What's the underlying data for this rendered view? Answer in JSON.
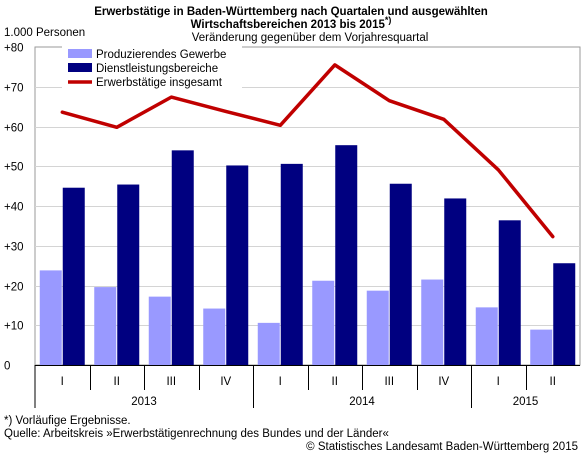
{
  "chart_data": {
    "type": "bar",
    "title": "Erwerbstätige in Baden-Württemberg nach Quartalen und ausgewählten Wirtschaftsbereichen 2013 bis 2015*)",
    "title_lines": [
      "Erwerbstätige in Baden-Württemberg nach Quartalen und ausgewählten",
      "Wirtschaftsbereichen 2013 bis 2015"
    ],
    "title_mark": "*)",
    "subtitle": "Veränderung gegenüber dem Vorjahresquartal",
    "ylabel": "1.000 Personen",
    "ylim": [
      0,
      80
    ],
    "yticks": [
      "0",
      "+10",
      "+20",
      "+30",
      "+40",
      "+50",
      "+60",
      "+70",
      "+80"
    ],
    "grid": true,
    "legend_position": "top-left",
    "categories": [
      "I",
      "II",
      "III",
      "IV",
      "I",
      "II",
      "III",
      "IV",
      "I",
      "II"
    ],
    "years": [
      {
        "label": "2013",
        "quarters": 4
      },
      {
        "label": "2014",
        "quarters": 4
      },
      {
        "label": "2015",
        "quarters": 2
      }
    ],
    "series": [
      {
        "name": "Produzierendes Gewerbe",
        "kind": "bar",
        "color": "#9999ff",
        "values": [
          23.8,
          19.6,
          17.2,
          14.2,
          10.6,
          21.2,
          18.7,
          21.5,
          14.5,
          8.9
        ]
      },
      {
        "name": "Dienstleistungsbereiche",
        "kind": "bar",
        "color": "#000080",
        "values": [
          44.6,
          45.4,
          54.0,
          50.2,
          50.6,
          55.3,
          45.6,
          41.9,
          36.4,
          25.6
        ]
      },
      {
        "name": "Erwerbstätige insgesamt",
        "kind": "line",
        "color": "#c00000",
        "values": [
          63.6,
          59.8,
          67.4,
          63.8,
          60.3,
          75.5,
          66.5,
          61.8,
          49.1,
          32.3
        ]
      }
    ]
  },
  "footnotes": {
    "note": "*) Vorläufige Ergebnisse.",
    "source": "Quelle: Arbeitskreis »Erwerbstätigenrechnung des Bundes und der Länder«",
    "copyright": "© Statistisches Landesamt Baden-Württemberg 2015"
  }
}
